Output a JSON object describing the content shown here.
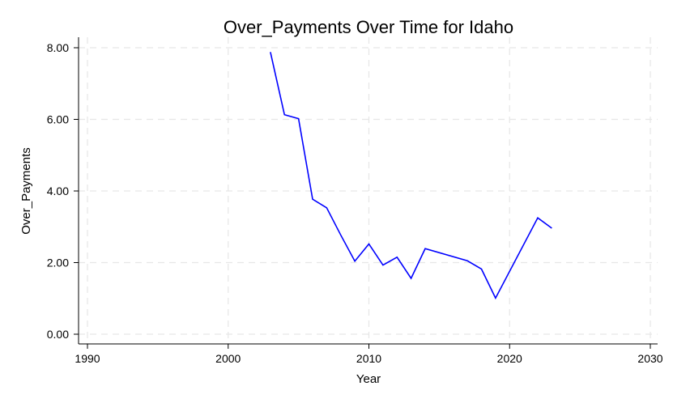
{
  "chart_data": {
    "type": "line",
    "title": "Over_Payments Over Time for Idaho",
    "xlabel": "Year",
    "ylabel": "Over_Payments",
    "xlim": [
      1990,
      2030
    ],
    "ylim": [
      0,
      8
    ],
    "x_ticks": [
      1990,
      2000,
      2010,
      2020,
      2030
    ],
    "x_tick_labels": [
      "1990",
      "2000",
      "2010",
      "2020",
      "2030"
    ],
    "y_ticks": [
      0,
      2,
      4,
      6,
      8
    ],
    "y_tick_labels": [
      "0.00",
      "2.00",
      "4.00",
      "6.00",
      "8.00"
    ],
    "grid": true,
    "series": [
      {
        "color": "#0000ff",
        "x": [
          2003,
          2004,
          2005,
          2006,
          2007,
          2008,
          2009,
          2010,
          2011,
          2012,
          2013,
          2014,
          2017,
          2018,
          2019,
          2022,
          2023
        ],
        "values": [
          7.88,
          6.13,
          6.02,
          3.77,
          3.53,
          2.77,
          2.04,
          2.52,
          1.93,
          2.15,
          1.56,
          2.39,
          2.05,
          1.82,
          1.01,
          3.25,
          2.96
        ]
      }
    ]
  }
}
